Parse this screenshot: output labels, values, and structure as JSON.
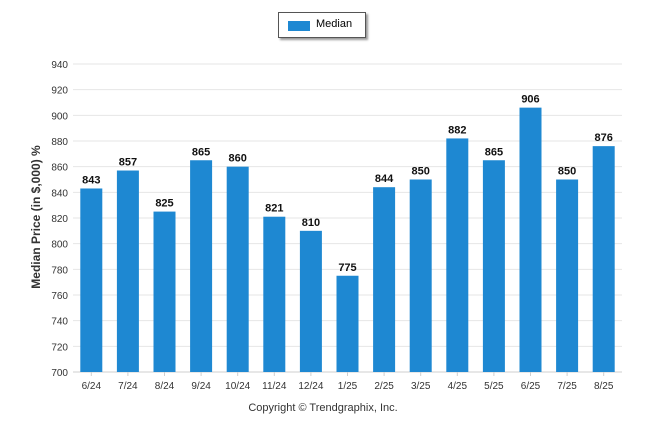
{
  "chart_data": {
    "type": "bar",
    "categories": [
      "6/24",
      "7/24",
      "8/24",
      "9/24",
      "10/24",
      "11/24",
      "12/24",
      "1/25",
      "2/25",
      "3/25",
      "4/25",
      "5/25",
      "6/25",
      "7/25",
      "8/25"
    ],
    "series": [
      {
        "name": "Median",
        "values": [
          843,
          857,
          825,
          865,
          860,
          821,
          810,
          775,
          844,
          850,
          882,
          865,
          906,
          850,
          876
        ]
      }
    ],
    "ylabel": "Median Price (in $,000) %",
    "xlabel": "",
    "ylim": [
      700,
      940
    ],
    "yticks": [
      700,
      720,
      740,
      760,
      780,
      800,
      820,
      840,
      860,
      880,
      900,
      920,
      940
    ],
    "grid": true,
    "legend_position": "top-center",
    "data_labels": true
  },
  "colors": {
    "bar": "#1e88d2",
    "grid": "#e6e6e6",
    "axis": "#cfcfcf",
    "text": "#333333"
  },
  "legend": {
    "label": "Median"
  },
  "footer": {
    "copyright": "Copyright © Trendgraphix, Inc."
  }
}
